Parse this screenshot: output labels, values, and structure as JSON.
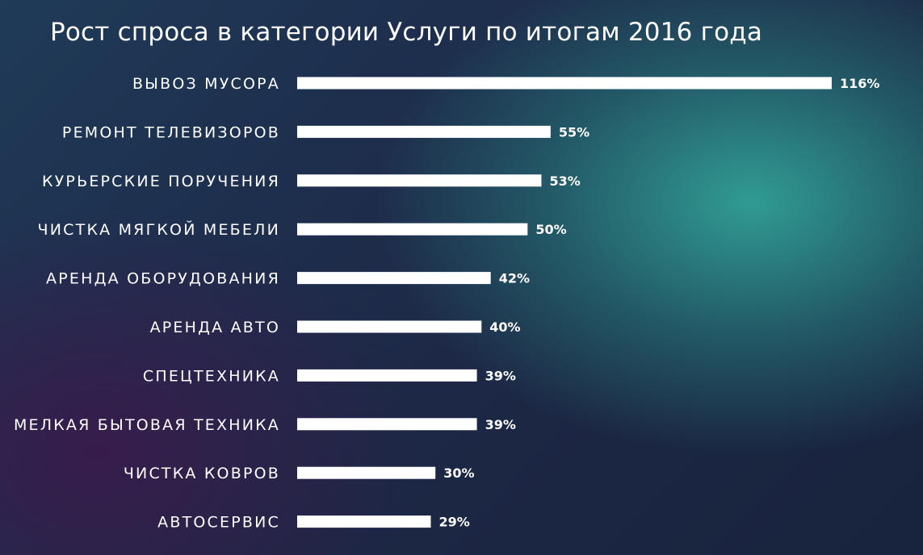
{
  "chart_data": {
    "type": "bar",
    "orientation": "horizontal",
    "title": "Рост спроса в категории Услуги по итогам 2016 года",
    "categories": [
      "ВЫВОЗ МУСОРА",
      "РЕМОНТ ТЕЛЕВИЗОРОВ",
      "КУРЬЕРСКИЕ ПОРУЧЕНИЯ",
      "ЧИСТКА МЯГКОЙ МЕБЕЛИ",
      "АРЕНДА ОБОРУДОВАНИЯ",
      "АРЕНДА АВТО",
      "СПЕЦТЕХНИКА",
      "МЕЛКАЯ БЫТОВАЯ ТЕХНИКА",
      "ЧИСТКА КОВРОВ",
      "АВТОСЕРВИС"
    ],
    "values": [
      116,
      55,
      53,
      50,
      42,
      40,
      39,
      39,
      30,
      29
    ],
    "value_labels": [
      "116%",
      "55%",
      "53%",
      "50%",
      "42%",
      "40%",
      "39%",
      "39%",
      "30%",
      "29%"
    ],
    "unit": "%",
    "grid": false,
    "legend": "none",
    "colors": {
      "bar": "#ffffff",
      "text": "#ffffff"
    }
  }
}
